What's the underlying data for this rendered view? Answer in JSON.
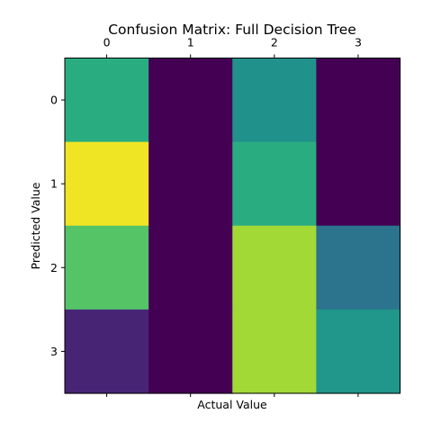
{
  "chart_data": {
    "type": "heatmap",
    "title": "Confusion Matrix: Full Decision Tree",
    "xlabel": "Actual Value",
    "ylabel": "Predicted Value",
    "x_categories": [
      "0",
      "1",
      "2",
      "3"
    ],
    "y_categories": [
      "0",
      "1",
      "2",
      "3"
    ],
    "x_tick_position": "top",
    "colormap": "viridis",
    "grid": false,
    "values": [
      [
        0.62,
        0.0,
        0.5,
        0.0
      ],
      [
        0.98,
        0.0,
        0.62,
        0.0
      ],
      [
        0.73,
        0.0,
        0.86,
        0.38
      ],
      [
        0.1,
        0.0,
        0.86,
        0.52
      ]
    ]
  }
}
